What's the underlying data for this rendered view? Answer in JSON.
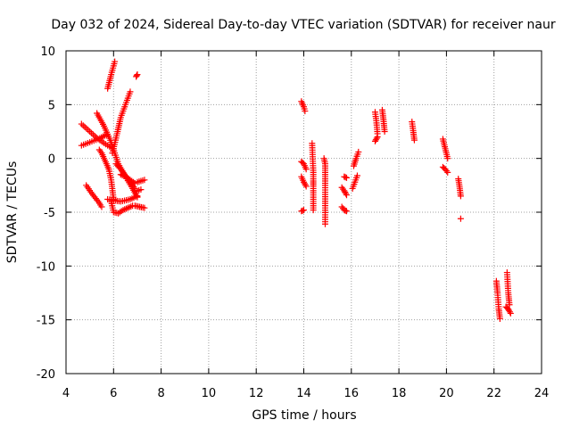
{
  "chart_data": {
    "type": "scatter",
    "title": "Day 032 of 2024, Sidereal Day-to-day VTEC variation (SDTVAR) for receiver naur",
    "xlabel": "GPS time / hours",
    "ylabel": "SDTVAR / TECUs",
    "xlim": [
      4,
      24
    ],
    "ylim": [
      -20,
      10
    ],
    "xticks": [
      4,
      6,
      8,
      10,
      12,
      14,
      16,
      18,
      20,
      22,
      24
    ],
    "yticks": [
      -20,
      -15,
      -10,
      -5,
      0,
      5,
      10
    ],
    "grid": true,
    "marker": "plus",
    "marker_color": "#ff0000",
    "tracks": [
      {
        "x": [
          4.65,
          5.0,
          5.35,
          5.75,
          6.0
        ],
        "y": [
          3.2,
          2.5,
          1.8,
          1.2,
          0.9
        ]
      },
      {
        "x": [
          4.65,
          5.0,
          5.35,
          5.7
        ],
        "y": [
          1.2,
          1.5,
          1.8,
          2.2
        ]
      },
      {
        "x": [
          5.3,
          5.6,
          5.9,
          6.2,
          6.5,
          6.8,
          7.0
        ],
        "y": [
          4.2,
          3.0,
          1.5,
          -0.5,
          -1.7,
          -2.8,
          -3.6
        ]
      },
      {
        "x": [
          5.4,
          5.5,
          5.6,
          5.7,
          5.8,
          5.9,
          6.0
        ],
        "y": [
          0.8,
          0.5,
          0.0,
          -0.5,
          -1.0,
          -2.0,
          -3.8
        ]
      },
      {
        "x": [
          4.85,
          5.1,
          5.35,
          5.5
        ],
        "y": [
          -2.5,
          -3.3,
          -4.0,
          -4.5
        ]
      },
      {
        "x": [
          5.75,
          6.0,
          6.3,
          6.7,
          7.0
        ],
        "y": [
          -3.8,
          -3.9,
          -4.0,
          -3.8,
          -3.5
        ]
      },
      {
        "x": [
          5.9,
          6.0,
          6.2,
          6.4,
          6.6,
          6.8
        ],
        "y": [
          -4.0,
          -5.0,
          -5.1,
          -4.8,
          -4.6,
          -4.4
        ]
      },
      {
        "x": [
          6.1,
          6.3,
          6.5,
          6.7,
          6.9
        ],
        "y": [
          -0.5,
          -1.0,
          -1.6,
          -2.2,
          -2.8
        ]
      },
      {
        "x": [
          5.75,
          5.9,
          6.05
        ],
        "y": [
          6.5,
          7.8,
          9.0
        ]
      },
      {
        "x": [
          5.95,
          6.15,
          6.3,
          6.5,
          6.7
        ],
        "y": [
          0.5,
          2.3,
          3.8,
          5.0,
          6.2
        ]
      },
      {
        "x": [
          6.3,
          6.5,
          6.7,
          6.9
        ],
        "y": [
          -1.5,
          -1.7,
          -2.0,
          -2.3
        ]
      },
      {
        "x": [
          7.0,
          7.3
        ],
        "y": [
          -2.2,
          -2.0
        ]
      },
      {
        "x": [
          6.9,
          7.1,
          7.3
        ],
        "y": [
          -4.4,
          -4.5,
          -4.6
        ]
      },
      {
        "x": [
          6.9,
          7.15
        ],
        "y": [
          -3.1,
          -2.9
        ]
      },
      {
        "x": [
          6.95,
          7.0
        ],
        "y": [
          7.6,
          7.8
        ]
      },
      {
        "x": [
          13.9,
          14.0,
          14.05
        ],
        "y": [
          5.3,
          4.8,
          4.4
        ]
      },
      {
        "x": [
          13.9,
          14.0,
          14.1
        ],
        "y": [
          -0.3,
          -0.5,
          -1.0
        ]
      },
      {
        "x": [
          13.9,
          14.0,
          14.1
        ],
        "y": [
          -1.7,
          -2.2,
          -2.6
        ]
      },
      {
        "x": [
          13.9,
          14.0
        ],
        "y": [
          -4.9,
          -4.8
        ]
      },
      {
        "x": [
          14.35,
          14.4,
          14.4,
          14.4,
          14.4,
          14.4
        ],
        "y": [
          1.4,
          -1.3,
          -2.1,
          -2.6,
          -3.2,
          -4.8
        ]
      },
      {
        "x": [
          14.85,
          14.9,
          14.9,
          14.9,
          14.9
        ],
        "y": [
          0.0,
          -0.5,
          -2.1,
          -4.6,
          -6.1
        ]
      },
      {
        "x": [
          15.6,
          15.7,
          15.8
        ],
        "y": [
          -2.7,
          -3.0,
          -3.4
        ]
      },
      {
        "x": [
          15.7,
          15.8
        ],
        "y": [
          -1.7,
          -1.8
        ]
      },
      {
        "x": [
          15.6,
          15.7,
          15.8
        ],
        "y": [
          -4.5,
          -4.8,
          -4.9
        ]
      },
      {
        "x": [
          16.1,
          16.2,
          16.3
        ],
        "y": [
          -0.7,
          0.0,
          0.6
        ]
      },
      {
        "x": [
          16.05,
          16.15,
          16.25
        ],
        "y": [
          -2.8,
          -2.2,
          -1.6
        ]
      },
      {
        "x": [
          17.0,
          17.05,
          17.1
        ],
        "y": [
          4.3,
          3.5,
          2.3
        ]
      },
      {
        "x": [
          17.0,
          17.1
        ],
        "y": [
          1.6,
          2.0
        ]
      },
      {
        "x": [
          17.3,
          17.35,
          17.4
        ],
        "y": [
          4.5,
          3.6,
          2.5
        ]
      },
      {
        "x": [
          18.55,
          18.6,
          18.65
        ],
        "y": [
          3.4,
          2.6,
          1.7
        ]
      },
      {
        "x": [
          19.85,
          19.95,
          20.05
        ],
        "y": [
          1.8,
          0.9,
          0.0
        ]
      },
      {
        "x": [
          19.85,
          19.95,
          20.05
        ],
        "y": [
          -0.8,
          -1.0,
          -1.3
        ]
      },
      {
        "x": [
          20.5,
          20.55,
          20.6
        ],
        "y": [
          -1.9,
          -2.6,
          -3.5
        ]
      },
      {
        "x": [
          20.6
        ],
        "y": [
          -5.6
        ]
      },
      {
        "x": [
          22.1,
          22.15,
          22.2,
          22.25
        ],
        "y": [
          -11.4,
          -12.5,
          -14.0,
          -14.9
        ]
      },
      {
        "x": [
          22.55,
          22.6,
          22.65
        ],
        "y": [
          -10.6,
          -12.5,
          -13.6
        ]
      },
      {
        "x": [
          22.5,
          22.6,
          22.7
        ],
        "y": [
          -13.8,
          -14.0,
          -14.4
        ]
      }
    ]
  }
}
